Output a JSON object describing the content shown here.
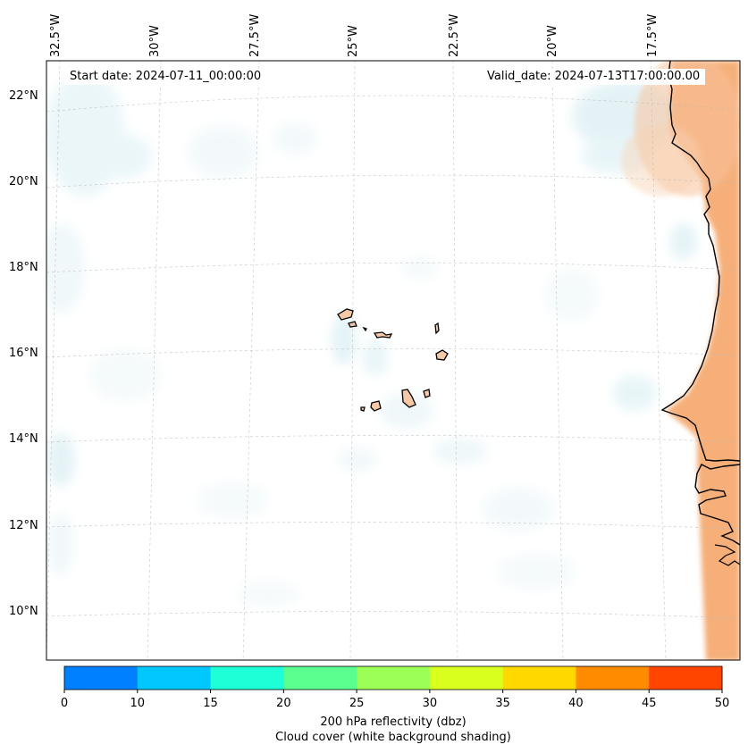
{
  "map": {
    "start_label": "Start date: 2024-07-11_00:00:00",
    "valid_label": "Valid_date: 2024-07-13T17:00:00.00",
    "longitude_ticks": [
      "32.5°W",
      "30°W",
      "27.5°W",
      "25°W",
      "22.5°W",
      "20°W",
      "17.5°W"
    ],
    "latitude_ticks": [
      "22°N",
      "20°N",
      "18°N",
      "16°N",
      "14°N",
      "12°N",
      "10°N"
    ],
    "land_fill_color": "#f5c9a8",
    "coast_color": "#000000",
    "cloud_color": "#cfe9f0",
    "warm_shading_color": "#f39a54"
  },
  "colorbar": {
    "ticks": [
      "0",
      "10",
      "15",
      "20",
      "25",
      "30",
      "35",
      "40",
      "45",
      "50"
    ],
    "colors": [
      "#0080ff",
      "#00c8ff",
      "#1effd8",
      "#5aff90",
      "#9cff55",
      "#d8ff1e",
      "#ffd800",
      "#ff8c00",
      "#ff4500"
    ],
    "title": "200 hPa reflectivity (dbz)",
    "subtitle": "Cloud cover (white background shading)"
  }
}
